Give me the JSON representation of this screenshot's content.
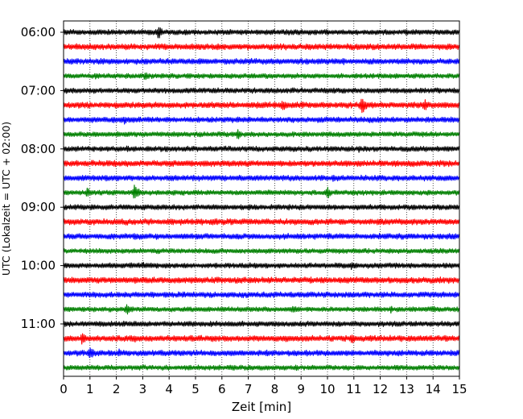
{
  "chart_data": {
    "type": "line",
    "chart_kind": "helicorder",
    "xlabel": "Zeit  [min]",
    "ylabel": "UTC (Lokalzeit = UTC + 02:00)",
    "xlim": [
      0,
      15
    ],
    "x_ticks": [
      "0",
      "1",
      "2",
      "3",
      "4",
      "5",
      "6",
      "7",
      "8",
      "9",
      "10",
      "11",
      "12",
      "13",
      "14",
      "15"
    ],
    "grid": {
      "vertical_dotted": true
    },
    "start_time": "06:00",
    "trace_minutes": 15,
    "trace_count": 24,
    "y_tick_labels": [
      "06:00",
      "07:00",
      "08:00",
      "09:00",
      "10:00",
      "11:00"
    ],
    "y_tick_trace_indices": [
      0,
      4,
      8,
      12,
      16,
      20
    ],
    "trace_colors": [
      "#000000",
      "#ff0000",
      "#0000ff",
      "#008000"
    ],
    "base_amplitude": [
      3.0,
      3.4,
      3.2,
      2.8
    ],
    "events": [
      {
        "trace": 0,
        "minute": 3.6,
        "amplitude": 9
      },
      {
        "trace": 1,
        "minute": 0.5,
        "amplitude": 4
      },
      {
        "trace": 1,
        "minute": 4.7,
        "amplitude": 4
      },
      {
        "trace": 2,
        "minute": 10.6,
        "amplitude": 5
      },
      {
        "trace": 2,
        "minute": 1.5,
        "amplitude": 4
      },
      {
        "trace": 3,
        "minute": 3.1,
        "amplitude": 7
      },
      {
        "trace": 3,
        "minute": 1.2,
        "amplitude": 4
      },
      {
        "trace": 5,
        "minute": 8.3,
        "amplitude": 8
      },
      {
        "trace": 5,
        "minute": 11.3,
        "amplitude": 13
      },
      {
        "trace": 5,
        "minute": 13.7,
        "amplitude": 8
      },
      {
        "trace": 5,
        "minute": 7.4,
        "amplitude": 4
      },
      {
        "trace": 6,
        "minute": 2.3,
        "amplitude": 6
      },
      {
        "trace": 6,
        "minute": 11.6,
        "amplitude": 5
      },
      {
        "trace": 7,
        "minute": 6.6,
        "amplitude": 7
      },
      {
        "trace": 7,
        "minute": 1.2,
        "amplitude": 4
      },
      {
        "trace": 8,
        "minute": 2.4,
        "amplitude": 5
      },
      {
        "trace": 8,
        "minute": 11.2,
        "amplitude": 5
      },
      {
        "trace": 8,
        "minute": 3.9,
        "amplitude": 4
      },
      {
        "trace": 9,
        "minute": 3.7,
        "amplitude": 4
      },
      {
        "trace": 10,
        "minute": 10.2,
        "amplitude": 5
      },
      {
        "trace": 11,
        "minute": 2.7,
        "amplitude": 12
      },
      {
        "trace": 11,
        "minute": 0.9,
        "amplitude": 7
      },
      {
        "trace": 11,
        "minute": 10.0,
        "amplitude": 8
      },
      {
        "trace": 13,
        "minute": 11.0,
        "amplitude": 4
      },
      {
        "trace": 14,
        "minute": 2.7,
        "amplitude": 5
      },
      {
        "trace": 16,
        "minute": 3.0,
        "amplitude": 5
      },
      {
        "trace": 16,
        "minute": 10.9,
        "amplitude": 6
      },
      {
        "trace": 16,
        "minute": 15.0,
        "amplitude": 5
      },
      {
        "trace": 17,
        "minute": 1.2,
        "amplitude": 4
      },
      {
        "trace": 18,
        "minute": 3.4,
        "amplitude": 4
      },
      {
        "trace": 19,
        "minute": 2.4,
        "amplitude": 7
      },
      {
        "trace": 19,
        "minute": 8.7,
        "amplitude": 6
      },
      {
        "trace": 19,
        "minute": 12.4,
        "amplitude": 5
      },
      {
        "trace": 19,
        "minute": 14.0,
        "amplitude": 5
      },
      {
        "trace": 20,
        "minute": 2.9,
        "amplitude": 4
      },
      {
        "trace": 21,
        "minute": 0.7,
        "amplitude": 8
      },
      {
        "trace": 21,
        "minute": 2.7,
        "amplitude": 5
      },
      {
        "trace": 21,
        "minute": 10.9,
        "amplitude": 8
      },
      {
        "trace": 22,
        "minute": 1.0,
        "amplitude": 9
      },
      {
        "trace": 22,
        "minute": 2.1,
        "amplitude": 6
      },
      {
        "trace": 22,
        "minute": 13.3,
        "amplitude": 4
      },
      {
        "trace": 23,
        "minute": 8.8,
        "amplitude": 5
      },
      {
        "trace": 23,
        "minute": 1.3,
        "amplitude": 4
      }
    ]
  }
}
